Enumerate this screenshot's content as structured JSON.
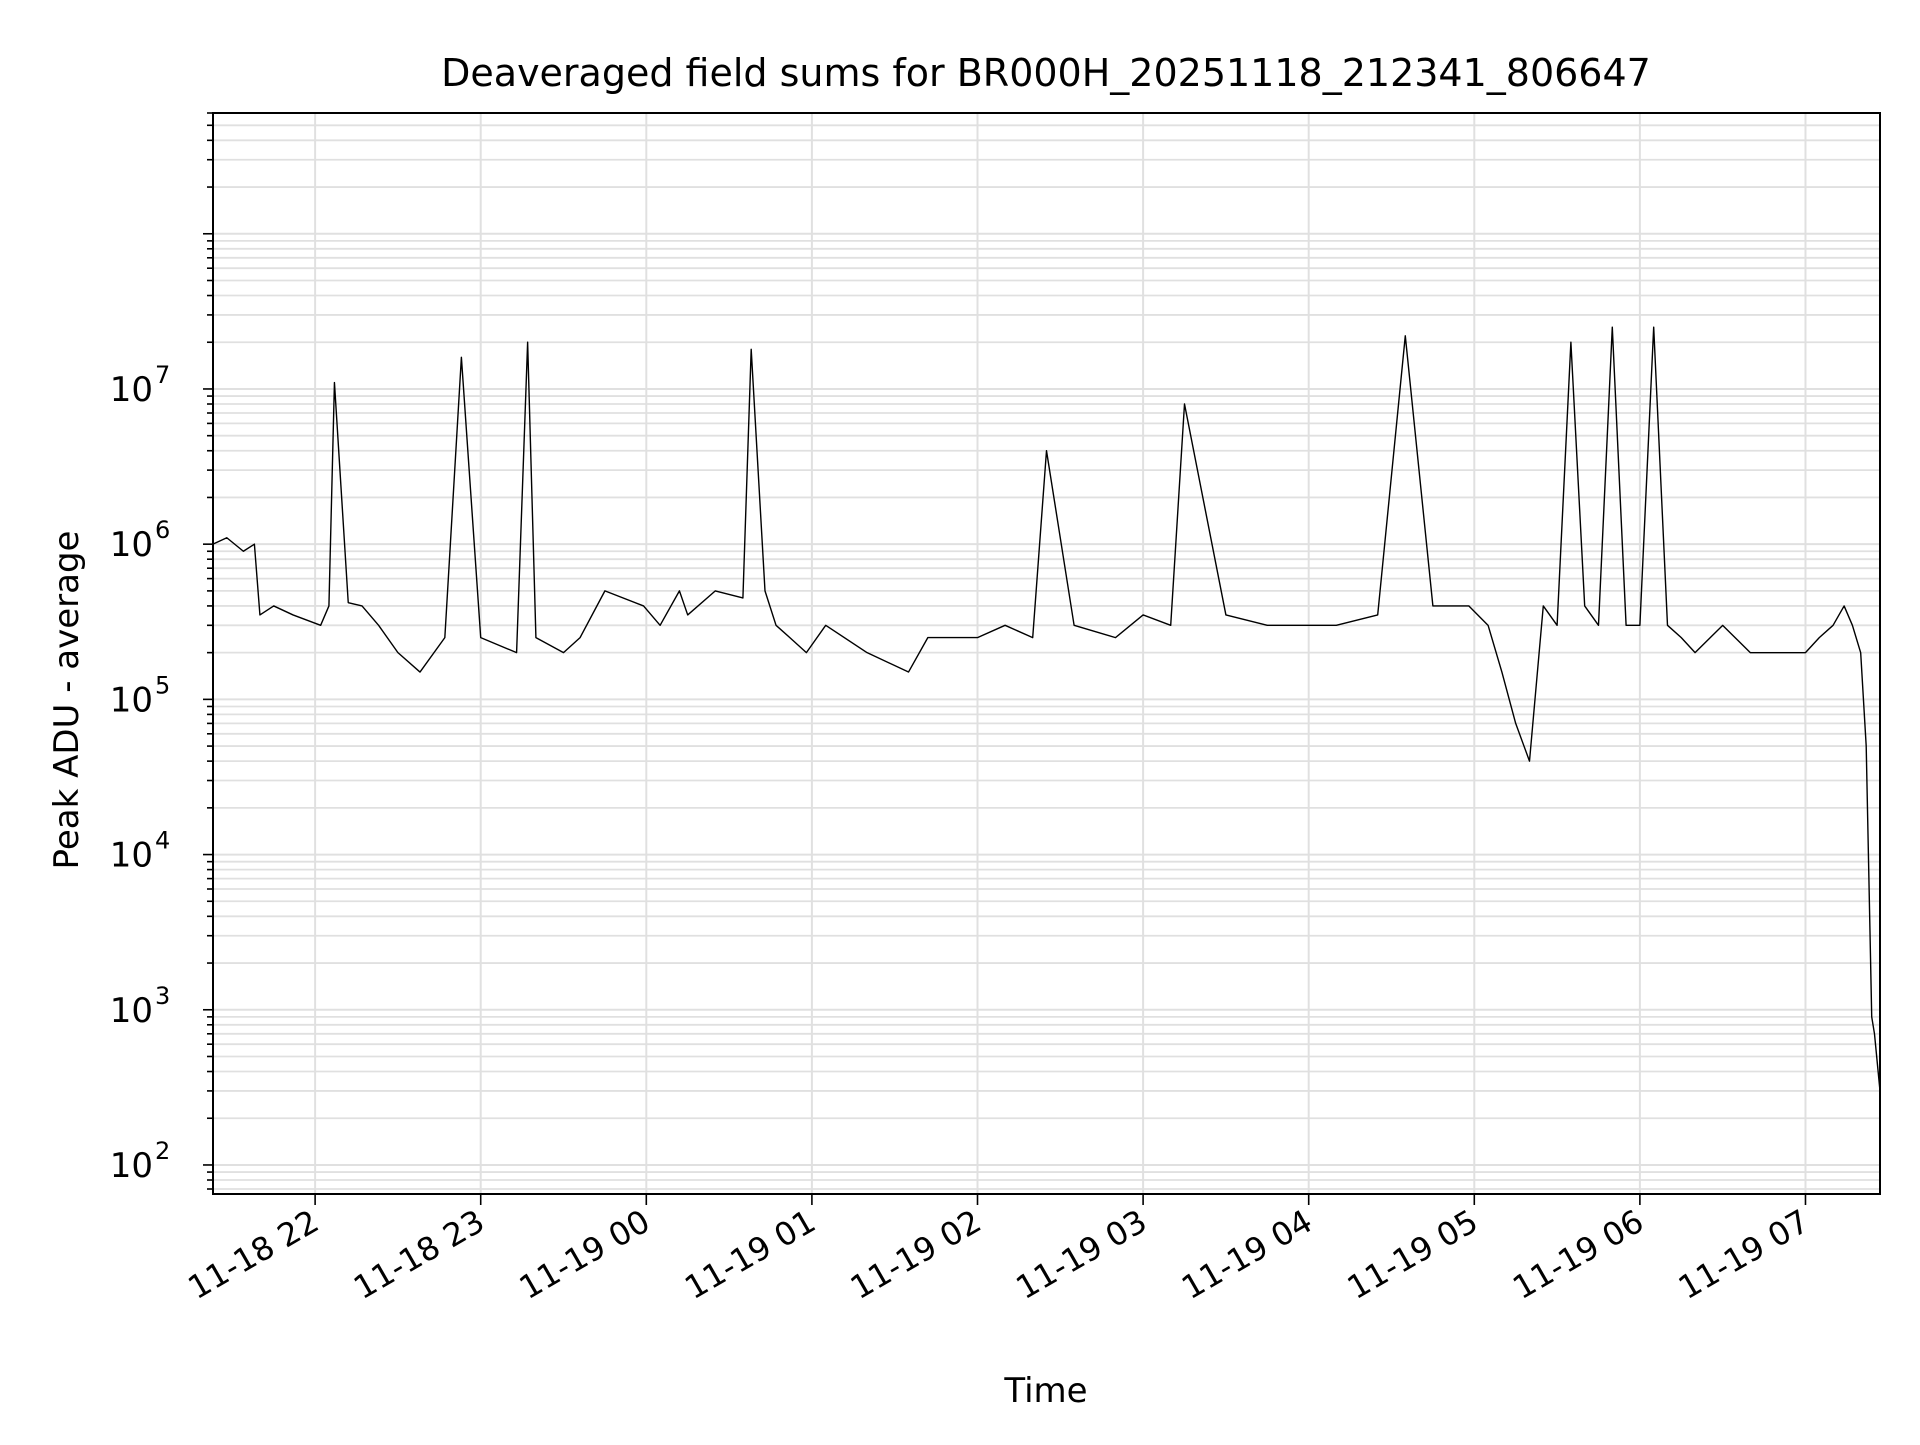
{
  "chart_data": {
    "type": "line",
    "title": "Deaveraged field sums for BR000H_20251118_212341_806647",
    "xlabel": "Time",
    "ylabel": "Peak ADU - average",
    "yscale": "log",
    "ylim": [
      65,
      600000000
    ],
    "xlim": [
      "2025-11-18 21:23",
      "2025-11-19 07:27"
    ],
    "grid": "both",
    "line_color": "#000000",
    "grid_color": "#e0e0e0",
    "x_ticks": [
      "11-18 22",
      "11-18 23",
      "11-19 00",
      "11-19 01",
      "11-19 02",
      "11-19 03",
      "11-19 04",
      "11-19 05",
      "11-19 06",
      "11-19 07"
    ],
    "y_ticks": [
      {
        "base": "10",
        "exp": "2"
      },
      {
        "base": "10",
        "exp": "3"
      },
      {
        "base": "10",
        "exp": "4"
      },
      {
        "base": "10",
        "exp": "5"
      },
      {
        "base": "10",
        "exp": "6"
      },
      {
        "base": "10",
        "exp": "7"
      }
    ],
    "series": [
      {
        "x": [
          "2025-11-18 21:23",
          "2025-11-18 21:28",
          "2025-11-18 21:34",
          "2025-11-18 21:38",
          "2025-11-18 21:40",
          "2025-11-18 21:45",
          "2025-11-18 21:52",
          "2025-11-18 22:02",
          "2025-11-18 22:05",
          "2025-11-18 22:07",
          "2025-11-18 22:12",
          "2025-11-18 22:17",
          "2025-11-18 22:23",
          "2025-11-18 22:30",
          "2025-11-18 22:38",
          "2025-11-18 22:47",
          "2025-11-18 22:53",
          "2025-11-18 23:00",
          "2025-11-18 23:13",
          "2025-11-18 23:17",
          "2025-11-18 23:20",
          "2025-11-18 23:30",
          "2025-11-18 23:36",
          "2025-11-18 23:45",
          "2025-11-18 23:59",
          "2025-11-19 00:05",
          "2025-11-19 00:12",
          "2025-11-19 00:15",
          "2025-11-19 00:25",
          "2025-11-19 00:35",
          "2025-11-19 00:38",
          "2025-11-19 00:43",
          "2025-11-19 00:47",
          "2025-11-19 00:52",
          "2025-11-19 00:58",
          "2025-11-19 01:05",
          "2025-11-19 01:20",
          "2025-11-19 01:35",
          "2025-11-19 01:42",
          "2025-11-19 02:00",
          "2025-11-19 02:10",
          "2025-11-19 02:20",
          "2025-11-19 02:25",
          "2025-11-19 02:35",
          "2025-11-19 02:50",
          "2025-11-19 03:00",
          "2025-11-19 03:10",
          "2025-11-19 03:15",
          "2025-11-19 03:30",
          "2025-11-19 03:45",
          "2025-11-19 04:00",
          "2025-11-19 04:10",
          "2025-11-19 04:25",
          "2025-11-19 04:35",
          "2025-11-19 04:45",
          "2025-11-19 04:58",
          "2025-11-19 05:05",
          "2025-11-19 05:10",
          "2025-11-19 05:15",
          "2025-11-19 05:20",
          "2025-11-19 05:25",
          "2025-11-19 05:30",
          "2025-11-19 05:35",
          "2025-11-19 05:40",
          "2025-11-19 05:45",
          "2025-11-19 05:50",
          "2025-11-19 05:55",
          "2025-11-19 06:00",
          "2025-11-19 06:05",
          "2025-11-19 06:10",
          "2025-11-19 06:15",
          "2025-11-19 06:20",
          "2025-11-19 06:30",
          "2025-11-19 06:40",
          "2025-11-19 06:50",
          "2025-11-19 07:00",
          "2025-11-19 07:05",
          "2025-11-19 07:10",
          "2025-11-19 07:14",
          "2025-11-19 07:17",
          "2025-11-19 07:20",
          "2025-11-19 07:22",
          "2025-11-19 07:24",
          "2025-11-19 07:25",
          "2025-11-19 07:27"
        ],
        "y": [
          1000000,
          1100000,
          900000,
          1000000,
          350000,
          400000,
          350000,
          300000,
          400000,
          11000000,
          420000,
          400000,
          300000,
          200000,
          150000,
          250000,
          16000000,
          250000,
          200000,
          20000000,
          250000,
          200000,
          250000,
          500000,
          400000,
          300000,
          500000,
          350000,
          500000,
          450000,
          18000000,
          500000,
          300000,
          250000,
          200000,
          300000,
          200000,
          150000,
          250000,
          250000,
          300000,
          250000,
          4000000,
          300000,
          250000,
          350000,
          300000,
          8000000,
          350000,
          300000,
          300000,
          300000,
          350000,
          22000000,
          400000,
          400000,
          300000,
          150000,
          70000,
          40000,
          400000,
          300000,
          20000000,
          400000,
          300000,
          25000000,
          300000,
          300000,
          25000000,
          300000,
          250000,
          200000,
          300000,
          200000,
          200000,
          200000,
          250000,
          300000,
          400000,
          300000,
          200000,
          50000,
          900,
          700,
          300
        ]
      }
    ]
  }
}
